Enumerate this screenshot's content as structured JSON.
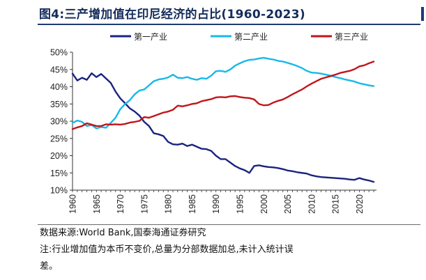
{
  "figure": {
    "title": "图4:三产增加值在印尼经济的占比(1960-2023)",
    "source": "数据来源:World Bank,国泰海通证券研究",
    "note_line1": "注:行业增加值为本币不变价,总量为分部数据加总,未计入统计误",
    "note_line2": "差。"
  },
  "colors": {
    "title": "#142c5a",
    "primary": "#1a237e",
    "secondary": "#17b8ea",
    "tertiary": "#c0151b",
    "axis": "#333333"
  },
  "chart_data": {
    "type": "line",
    "title": "",
    "xlabel": "",
    "ylabel": "",
    "xlim": [
      1960,
      2023
    ],
    "ylim": [
      10,
      50
    ],
    "y_ticks": [
      10,
      15,
      20,
      25,
      30,
      35,
      40,
      45,
      50
    ],
    "y_tick_labels": [
      "10%",
      "15%",
      "20%",
      "25%",
      "30%",
      "35%",
      "40%",
      "45%",
      "50%"
    ],
    "x_ticks": [
      1960,
      1965,
      1970,
      1975,
      1980,
      1985,
      1990,
      1995,
      2000,
      2005,
      2010,
      2015,
      2020
    ],
    "x_tick_labels": [
      "1960",
      "1965",
      "1970",
      "1975",
      "1980",
      "1985",
      "1990",
      "1995",
      "2000",
      "2005",
      "2010",
      "2015",
      "2020"
    ],
    "grid": false,
    "legend_position": "top",
    "x": [
      1960,
      1961,
      1962,
      1963,
      1964,
      1965,
      1966,
      1967,
      1968,
      1969,
      1970,
      1971,
      1972,
      1973,
      1974,
      1975,
      1976,
      1977,
      1978,
      1979,
      1980,
      1981,
      1982,
      1983,
      1984,
      1985,
      1986,
      1987,
      1988,
      1989,
      1990,
      1991,
      1992,
      1993,
      1994,
      1995,
      1996,
      1997,
      1998,
      1999,
      2000,
      2001,
      2002,
      2003,
      2004,
      2005,
      2006,
      2007,
      2008,
      2009,
      2010,
      2011,
      2012,
      2013,
      2014,
      2015,
      2016,
      2017,
      2018,
      2019,
      2020,
      2021,
      2022,
      2023
    ],
    "series": [
      {
        "name": "第一产业",
        "color": "#1a237e",
        "values": [
          43.8,
          41.8,
          42.6,
          42.0,
          43.9,
          42.8,
          43.7,
          42.4,
          41.1,
          38.6,
          36.6,
          35.2,
          33.7,
          32.8,
          31.6,
          29.8,
          28.6,
          26.5,
          26.2,
          25.7,
          24.0,
          23.3,
          23.2,
          23.5,
          22.8,
          23.2,
          22.6,
          22.0,
          21.9,
          21.4,
          20.0,
          19.0,
          19.0,
          18.0,
          17.0,
          16.3,
          15.8,
          15.0,
          17.0,
          17.2,
          16.9,
          16.7,
          16.6,
          16.4,
          16.1,
          15.7,
          15.5,
          15.2,
          15.0,
          14.8,
          14.3,
          14.0,
          13.8,
          13.7,
          13.6,
          13.5,
          13.4,
          13.3,
          13.1,
          13.0,
          13.5,
          13.1,
          12.8,
          12.4
        ]
      },
      {
        "name": "第二产业",
        "color": "#17b8ea",
        "values": [
          29.5,
          30.2,
          29.8,
          28.6,
          28.9,
          27.9,
          28.3,
          28.1,
          29.5,
          31.0,
          33.5,
          35.0,
          36.1,
          37.8,
          38.9,
          39.2,
          40.4,
          41.6,
          42.1,
          42.3,
          42.7,
          43.5,
          42.6,
          42.5,
          42.8,
          42.3,
          42.0,
          42.5,
          42.3,
          43.2,
          44.5,
          44.6,
          44.3,
          45.0,
          46.1,
          46.8,
          47.4,
          47.8,
          47.9,
          48.2,
          48.4,
          48.1,
          47.9,
          47.5,
          47.3,
          46.9,
          46.5,
          46.0,
          45.4,
          44.6,
          44.1,
          44.0,
          43.8,
          43.5,
          43.2,
          42.8,
          42.5,
          42.1,
          41.8,
          41.5,
          41.0,
          40.7,
          40.4,
          40.2
        ]
      },
      {
        "name": "第三产业",
        "color": "#c0151b",
        "values": [
          27.7,
          28.2,
          28.6,
          29.4,
          29.0,
          28.6,
          28.6,
          29.1,
          29.0,
          29.1,
          29.0,
          29.2,
          29.6,
          29.8,
          30.1,
          31.2,
          31.0,
          31.5,
          32.0,
          32.5,
          32.8,
          33.3,
          34.5,
          34.3,
          34.6,
          35.0,
          35.2,
          35.8,
          36.1,
          36.4,
          36.9,
          37.0,
          36.9,
          37.2,
          37.3,
          37.0,
          36.8,
          36.7,
          36.3,
          35.0,
          34.6,
          34.7,
          35.4,
          35.9,
          36.3,
          37.0,
          37.8,
          38.5,
          39.2,
          40.1,
          40.9,
          41.6,
          42.3,
          42.7,
          43.1,
          43.5,
          44.0,
          44.3,
          44.6,
          45.1,
          45.9,
          46.2,
          46.8,
          47.3
        ]
      }
    ]
  }
}
